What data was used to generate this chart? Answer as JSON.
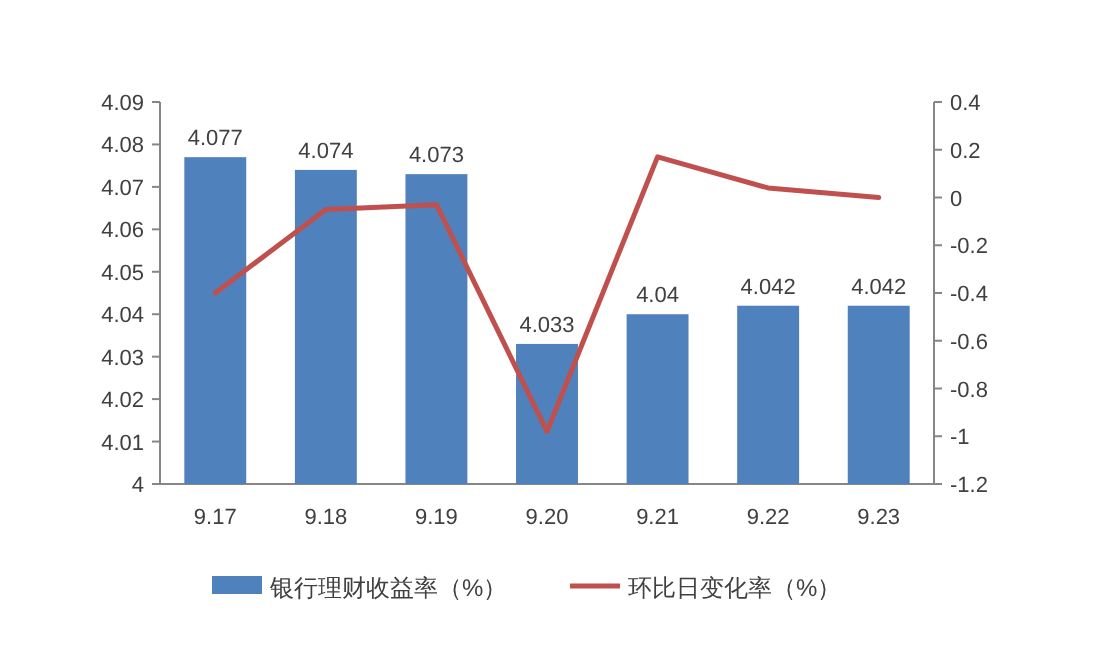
{
  "chart_data": {
    "type": "bar",
    "categories": [
      "9.17",
      "9.18",
      "9.19",
      "9.20",
      "9.21",
      "9.22",
      "9.23"
    ],
    "series": [
      {
        "name": "银行理财收益率（%）",
        "color": "#4f81bd",
        "values": [
          4.077,
          4.074,
          4.073,
          4.033,
          4.04,
          4.042,
          4.042
        ],
        "value_labels": [
          "4.077",
          "4.074",
          "4.073",
          "4.033",
          "4.04",
          "4.042",
          "4.042"
        ]
      },
      {
        "name": "环比日变化率（%）",
        "type": "line",
        "axis": "y2",
        "color": "#c0504d",
        "values": [
          -0.4,
          -0.05,
          -0.03,
          -0.98,
          0.17,
          0.04,
          0.0
        ]
      }
    ],
    "ylim": [
      4,
      4.09
    ],
    "yticks": [
      4,
      4.01,
      4.02,
      4.03,
      4.04,
      4.05,
      4.06,
      4.07,
      4.08,
      4.09
    ],
    "y2lim": [
      -1.2,
      0.4
    ],
    "y2ticks": [
      -1.2,
      -1,
      -0.8,
      -0.6,
      -0.4,
      -0.2,
      0,
      0.2,
      0.4
    ],
    "grid": false,
    "legend": "bottom",
    "marker": "none",
    "line_style": "solid"
  }
}
